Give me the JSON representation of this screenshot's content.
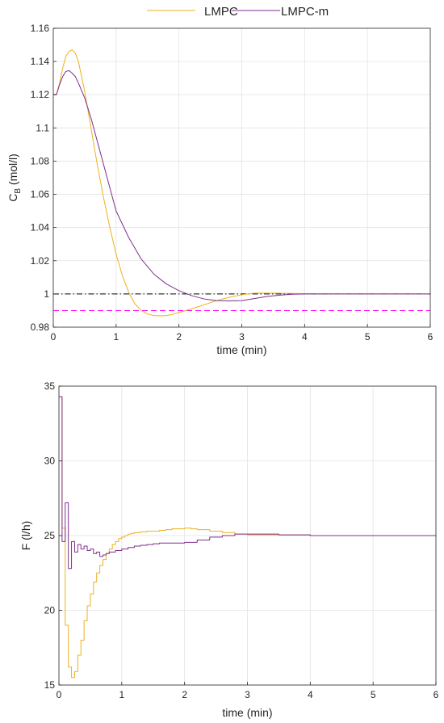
{
  "legend": [
    {
      "label": "LMPC",
      "color": "#EDB120"
    },
    {
      "label": "LMPC-m",
      "color": "#7E2F8E"
    }
  ],
  "chart_data": [
    {
      "type": "line",
      "xlabel": "time (min)",
      "ylabel_main": "C",
      "ylabel_sub": "B",
      "ylabel_tail": " (mol/l)",
      "xlim": [
        0,
        6
      ],
      "ylim": [
        0.98,
        1.16
      ],
      "xticks": [
        "0",
        "1",
        "2",
        "3",
        "4",
        "5",
        "6"
      ],
      "yticks": [
        "0.98",
        "1",
        "1.02",
        "1.04",
        "1.06",
        "1.08",
        "1.1",
        "1.12",
        "1.14",
        "1.16"
      ],
      "grid": true,
      "reference_lines": [
        {
          "y": 1.0,
          "color": "#000000",
          "style": "dash-dot"
        },
        {
          "y": 0.99,
          "color": "#FF00FF",
          "style": "dashed"
        }
      ],
      "series": [
        {
          "name": "LMPC",
          "color": "#EDB120",
          "x": [
            0,
            0.05,
            0.1,
            0.15,
            0.2,
            0.25,
            0.3,
            0.35,
            0.4,
            0.5,
            0.6,
            0.7,
            0.8,
            0.9,
            1.0,
            1.1,
            1.2,
            1.3,
            1.4,
            1.5,
            1.6,
            1.7,
            1.8,
            1.9,
            2.0,
            2.2,
            2.4,
            2.6,
            2.8,
            3.0,
            3.2,
            3.5,
            4.0,
            4.5,
            5.0,
            6.0
          ],
          "y": [
            1.12,
            1.12,
            1.127,
            1.136,
            1.143,
            1.146,
            1.147,
            1.145,
            1.14,
            1.122,
            1.1,
            1.078,
            1.058,
            1.04,
            1.024,
            1.011,
            1.001,
            0.994,
            0.99,
            0.988,
            0.987,
            0.9868,
            0.987,
            0.9878,
            0.9888,
            0.991,
            0.9935,
            0.996,
            0.998,
            0.9995,
            1.0005,
            1.0005,
            1.0002,
            1.0,
            1.0,
            1.0
          ]
        },
        {
          "name": "LMPC-m",
          "color": "#7E2F8E",
          "x": [
            0,
            0.05,
            0.1,
            0.15,
            0.2,
            0.25,
            0.3,
            0.35,
            0.4,
            0.5,
            0.6,
            0.7,
            0.8,
            0.9,
            1.0,
            1.2,
            1.4,
            1.6,
            1.8,
            2.0,
            2.2,
            2.4,
            2.6,
            2.8,
            3.0,
            3.2,
            3.4,
            3.6,
            3.8,
            4.0,
            4.5,
            5.0,
            6.0
          ],
          "y": [
            1.12,
            1.12,
            1.126,
            1.131,
            1.134,
            1.1345,
            1.133,
            1.131,
            1.127,
            1.118,
            1.106,
            1.092,
            1.078,
            1.064,
            1.05,
            1.034,
            1.021,
            1.012,
            1.006,
            1.002,
            0.999,
            0.997,
            0.996,
            0.9958,
            0.996,
            0.9972,
            0.9985,
            0.9993,
            0.9998,
            1.0,
            1.0,
            1.0,
            1.0
          ]
        }
      ]
    },
    {
      "type": "line",
      "xlabel": "time (min)",
      "ylabel": "F (l/h)",
      "xlim": [
        0,
        6
      ],
      "ylim": [
        15,
        35
      ],
      "xticks": [
        "0",
        "1",
        "2",
        "3",
        "4",
        "5",
        "6"
      ],
      "yticks": [
        "15",
        "20",
        "25",
        "30",
        "35"
      ],
      "grid": true,
      "step": true,
      "series": [
        {
          "name": "LMPC",
          "color": "#EDB120",
          "x": [
            0,
            0.05,
            0.1,
            0.15,
            0.2,
            0.25,
            0.3,
            0.35,
            0.4,
            0.45,
            0.5,
            0.55,
            0.6,
            0.65,
            0.7,
            0.75,
            0.8,
            0.85,
            0.9,
            0.95,
            1.0,
            1.05,
            1.1,
            1.15,
            1.2,
            1.3,
            1.4,
            1.5,
            1.6,
            1.7,
            1.8,
            1.9,
            2.0,
            2.1,
            2.2,
            2.4,
            2.6,
            2.8,
            3.0,
            3.5,
            4.0,
            6.0
          ],
          "y": [
            34.3,
            25.5,
            19.0,
            16.2,
            15.5,
            15.9,
            17.0,
            18.0,
            19.3,
            20.3,
            21.1,
            21.9,
            22.5,
            23.0,
            23.4,
            23.8,
            24.1,
            24.4,
            24.6,
            24.8,
            24.9,
            25.0,
            25.1,
            25.15,
            25.2,
            25.25,
            25.3,
            25.3,
            25.35,
            25.4,
            25.45,
            25.45,
            25.5,
            25.45,
            25.4,
            25.3,
            25.2,
            25.1,
            25.05,
            25.05,
            25.0,
            25.0
          ]
        },
        {
          "name": "LMPC-m",
          "color": "#7E2F8E",
          "x": [
            0,
            0.05,
            0.1,
            0.15,
            0.2,
            0.25,
            0.3,
            0.35,
            0.4,
            0.45,
            0.5,
            0.55,
            0.6,
            0.65,
            0.7,
            0.75,
            0.8,
            0.9,
            1.0,
            1.1,
            1.2,
            1.3,
            1.4,
            1.5,
            1.6,
            1.8,
            2.0,
            2.2,
            2.4,
            2.6,
            2.8,
            3.0,
            3.2,
            3.5,
            4.0,
            4.5,
            5.0,
            6.0
          ],
          "y": [
            34.3,
            24.6,
            27.2,
            22.8,
            24.6,
            23.9,
            24.4,
            24.1,
            24.3,
            24.0,
            24.1,
            23.8,
            23.9,
            23.6,
            23.7,
            23.8,
            23.9,
            24.0,
            24.1,
            24.2,
            24.3,
            24.35,
            24.4,
            24.45,
            24.5,
            24.5,
            24.55,
            24.7,
            24.9,
            25.0,
            25.1,
            25.1,
            25.1,
            25.05,
            25.0,
            25.0,
            25.0,
            25.0
          ]
        }
      ]
    }
  ]
}
